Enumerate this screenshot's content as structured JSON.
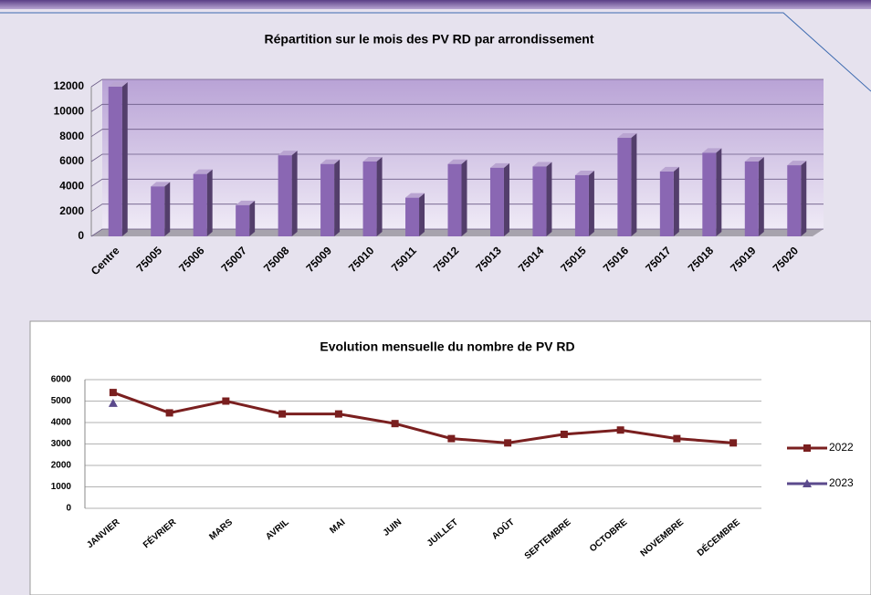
{
  "chart_data": [
    {
      "type": "bar",
      "title": "Répartition sur le mois des PV RD par arrondissement",
      "categories": [
        "Centre",
        "75005",
        "75006",
        "75007",
        "75008",
        "75009",
        "75010",
        "75011",
        "75012",
        "75013",
        "75014",
        "75015",
        "75016",
        "75017",
        "75018",
        "75019",
        "75020"
      ],
      "values": [
        12000,
        4000,
        5000,
        2500,
        6500,
        5800,
        6000,
        3100,
        5800,
        5500,
        5600,
        4900,
        7900,
        5200,
        6700,
        6000,
        5700
      ],
      "color": "#8a67b3",
      "ylim": [
        0,
        12000
      ],
      "yticks": [
        0,
        2000,
        4000,
        6000,
        8000,
        10000,
        12000
      ],
      "grid": true
    },
    {
      "type": "line",
      "title": "Evolution mensuelle du nombre de PV RD",
      "categories": [
        "JANVIER",
        "FÉVRIER",
        "MARS",
        "AVRIL",
        "MAI",
        "JUIN",
        "JUILLET",
        "AOÛT",
        "SEPTEMBRE",
        "OCTOBRE",
        "NOVEMBRE",
        "DÉCEMBRE"
      ],
      "series": [
        {
          "name": "2022",
          "color": "#7a1f1f",
          "values": [
            5400,
            4450,
            5000,
            4400,
            4400,
            3950,
            3250,
            3050,
            3450,
            3650,
            3250,
            3050
          ]
        },
        {
          "name": "2023",
          "color": "#5b4a8c",
          "values": [
            4900,
            null,
            null,
            null,
            null,
            null,
            null,
            null,
            null,
            null,
            null,
            null
          ]
        }
      ],
      "ylim": [
        0,
        6000
      ],
      "yticks": [
        0,
        1000,
        2000,
        3000,
        4000,
        5000,
        6000
      ],
      "grid": true,
      "legend": "right"
    }
  ]
}
